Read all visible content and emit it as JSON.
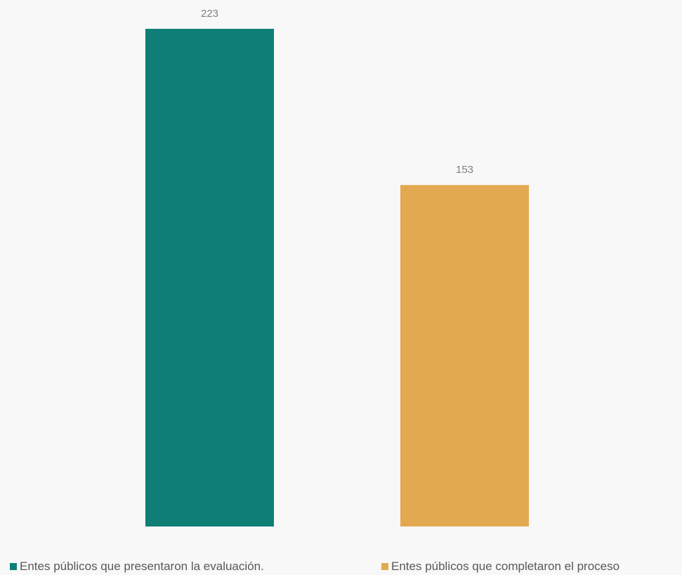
{
  "colors": {
    "background": "#f8f8f8",
    "label_text": "#7f7f7f",
    "legend_text": "#595959"
  },
  "chart_data": {
    "type": "bar",
    "categories": [
      ""
    ],
    "series": [
      {
        "name": "Entes públicos que presentaron la evaluación.",
        "values": [
          223
        ],
        "color": "#0e7e77"
      },
      {
        "name": "Entes públicos que completaron el proceso",
        "values": [
          153
        ],
        "color": "#e3a951"
      }
    ],
    "ylim": [
      0,
      223
    ],
    "grid": false,
    "data_labels": true,
    "legend_position": "bottom"
  }
}
